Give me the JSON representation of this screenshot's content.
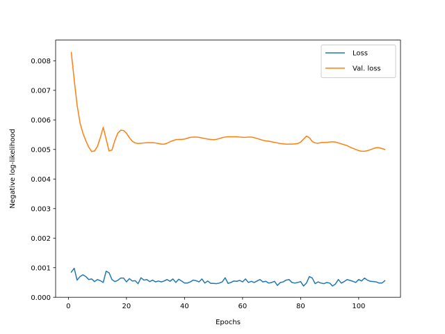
{
  "chart_data": {
    "type": "line",
    "title": "",
    "xlabel": "Epochs",
    "ylabel": "Negative log-likelihood",
    "xlim": [
      -4.4,
      114.4
    ],
    "ylim": [
      0,
      0.0087
    ],
    "xticks": [
      0,
      20,
      40,
      60,
      80,
      100
    ],
    "yticks": [
      0.0,
      0.001,
      0.002,
      0.003,
      0.004,
      0.005,
      0.006,
      0.007,
      0.008
    ],
    "ytick_labels": [
      "0.000",
      "0.001",
      "0.002",
      "0.003",
      "0.004",
      "0.005",
      "0.006",
      "0.007",
      "0.008"
    ],
    "grid": false,
    "legend_position": "upper right",
    "series": [
      {
        "name": "Loss",
        "color": "#1f77b4",
        "x": [
          1,
          2,
          3,
          4,
          5,
          6,
          7,
          8,
          9,
          10,
          11,
          12,
          13,
          14,
          15,
          16,
          17,
          18,
          19,
          20,
          21,
          22,
          23,
          24,
          25,
          26,
          27,
          28,
          29,
          30,
          31,
          32,
          33,
          34,
          35,
          36,
          37,
          38,
          39,
          40,
          41,
          42,
          43,
          44,
          45,
          46,
          47,
          48,
          49,
          50,
          51,
          52,
          53,
          54,
          55,
          56,
          57,
          58,
          59,
          60,
          61,
          62,
          63,
          64,
          65,
          66,
          67,
          68,
          69,
          70,
          71,
          72,
          73,
          74,
          75,
          76,
          77,
          78,
          79,
          80,
          81,
          82,
          83,
          84,
          85,
          86,
          87,
          88,
          89,
          90,
          91,
          92,
          93,
          94,
          95,
          96,
          97,
          98,
          99,
          100,
          101,
          102,
          103,
          104,
          105,
          106,
          107,
          108,
          109
        ],
        "values": [
          0.00085,
          0.00098,
          0.00058,
          0.0007,
          0.00076,
          0.0007,
          0.0006,
          0.00062,
          0.00053,
          0.0006,
          0.00056,
          0.0005,
          0.00088,
          0.00083,
          0.0006,
          0.00053,
          0.00057,
          0.00065,
          0.00065,
          0.00052,
          0.00063,
          0.00055,
          0.00056,
          0.00046,
          0.00066,
          0.00058,
          0.0006,
          0.00053,
          0.00058,
          0.00052,
          0.00055,
          0.00052,
          0.00055,
          0.0006,
          0.00054,
          0.00062,
          0.0005,
          0.00061,
          0.00055,
          0.00048,
          0.00048,
          0.00052,
          0.00058,
          0.00056,
          0.00052,
          0.00062,
          0.00048,
          0.00055,
          0.00047,
          0.00047,
          0.00046,
          0.00048,
          0.00052,
          0.00066,
          0.00047,
          0.0005,
          0.00055,
          0.00054,
          0.00057,
          0.00052,
          0.00062,
          0.0005,
          0.00054,
          0.0005,
          0.00055,
          0.0006,
          0.00052,
          0.00054,
          0.00048,
          0.0005,
          0.00054,
          0.0004,
          0.0005,
          0.00052,
          0.00058,
          0.0006,
          0.0005,
          0.00048,
          0.0005,
          0.00053,
          0.00038,
          0.00048,
          0.0007,
          0.00065,
          0.00046,
          0.00052,
          0.00048,
          0.00046,
          0.0005,
          0.00048,
          0.00038,
          0.00045,
          0.0006,
          0.00048,
          0.00053,
          0.0006,
          0.00057,
          0.00054,
          0.0005,
          0.0006,
          0.00055,
          0.00065,
          0.00058,
          0.00054,
          0.00053,
          0.00052,
          0.00048,
          0.00048,
          0.00056
        ]
      },
      {
        "name": "Val. loss",
        "color": "#ff7f0e",
        "x": [
          1,
          2,
          3,
          4,
          5,
          6,
          7,
          8,
          9,
          10,
          11,
          12,
          13,
          14,
          15,
          16,
          17,
          18,
          19,
          20,
          21,
          22,
          23,
          24,
          25,
          26,
          27,
          28,
          29,
          30,
          31,
          32,
          33,
          34,
          35,
          36,
          37,
          38,
          39,
          40,
          41,
          42,
          43,
          44,
          45,
          46,
          47,
          48,
          49,
          50,
          51,
          52,
          53,
          54,
          55,
          56,
          57,
          58,
          59,
          60,
          61,
          62,
          63,
          64,
          65,
          66,
          67,
          68,
          69,
          70,
          71,
          72,
          73,
          74,
          75,
          76,
          77,
          78,
          79,
          80,
          81,
          82,
          83,
          84,
          85,
          86,
          87,
          88,
          89,
          90,
          91,
          92,
          93,
          94,
          95,
          96,
          97,
          98,
          99,
          100,
          101,
          102,
          103,
          104,
          105,
          106,
          107,
          108,
          109
        ],
        "values": [
          0.00828,
          0.00735,
          0.0065,
          0.0059,
          0.00555,
          0.0053,
          0.00508,
          0.00493,
          0.00495,
          0.0051,
          0.0054,
          0.00575,
          0.00535,
          0.00495,
          0.00498,
          0.0053,
          0.00555,
          0.00565,
          0.00564,
          0.00555,
          0.0054,
          0.00528,
          0.00522,
          0.0052,
          0.00521,
          0.00522,
          0.00523,
          0.00523,
          0.00523,
          0.00522,
          0.0052,
          0.00518,
          0.00518,
          0.00521,
          0.00526,
          0.0053,
          0.00533,
          0.00534,
          0.00534,
          0.00535,
          0.00538,
          0.00541,
          0.00542,
          0.00542,
          0.00541,
          0.00539,
          0.00537,
          0.00535,
          0.00534,
          0.00533,
          0.00534,
          0.00537,
          0.0054,
          0.00542,
          0.00543,
          0.00543,
          0.00543,
          0.00543,
          0.00542,
          0.00541,
          0.00541,
          0.00542,
          0.00542,
          0.0054,
          0.00537,
          0.00534,
          0.00531,
          0.00529,
          0.00528,
          0.00526,
          0.00524,
          0.00522,
          0.0052,
          0.00519,
          0.00518,
          0.00518,
          0.00518,
          0.00519,
          0.0052,
          0.00525,
          0.00535,
          0.00545,
          0.0054,
          0.00527,
          0.00522,
          0.00521,
          0.00523,
          0.00524,
          0.00524,
          0.00525,
          0.00526,
          0.00525,
          0.00522,
          0.00519,
          0.00516,
          0.00513,
          0.00508,
          0.00504,
          0.005,
          0.00496,
          0.00494,
          0.00494,
          0.00496,
          0.00499,
          0.00503,
          0.00506,
          0.00506,
          0.00503,
          0.005
        ]
      }
    ]
  }
}
